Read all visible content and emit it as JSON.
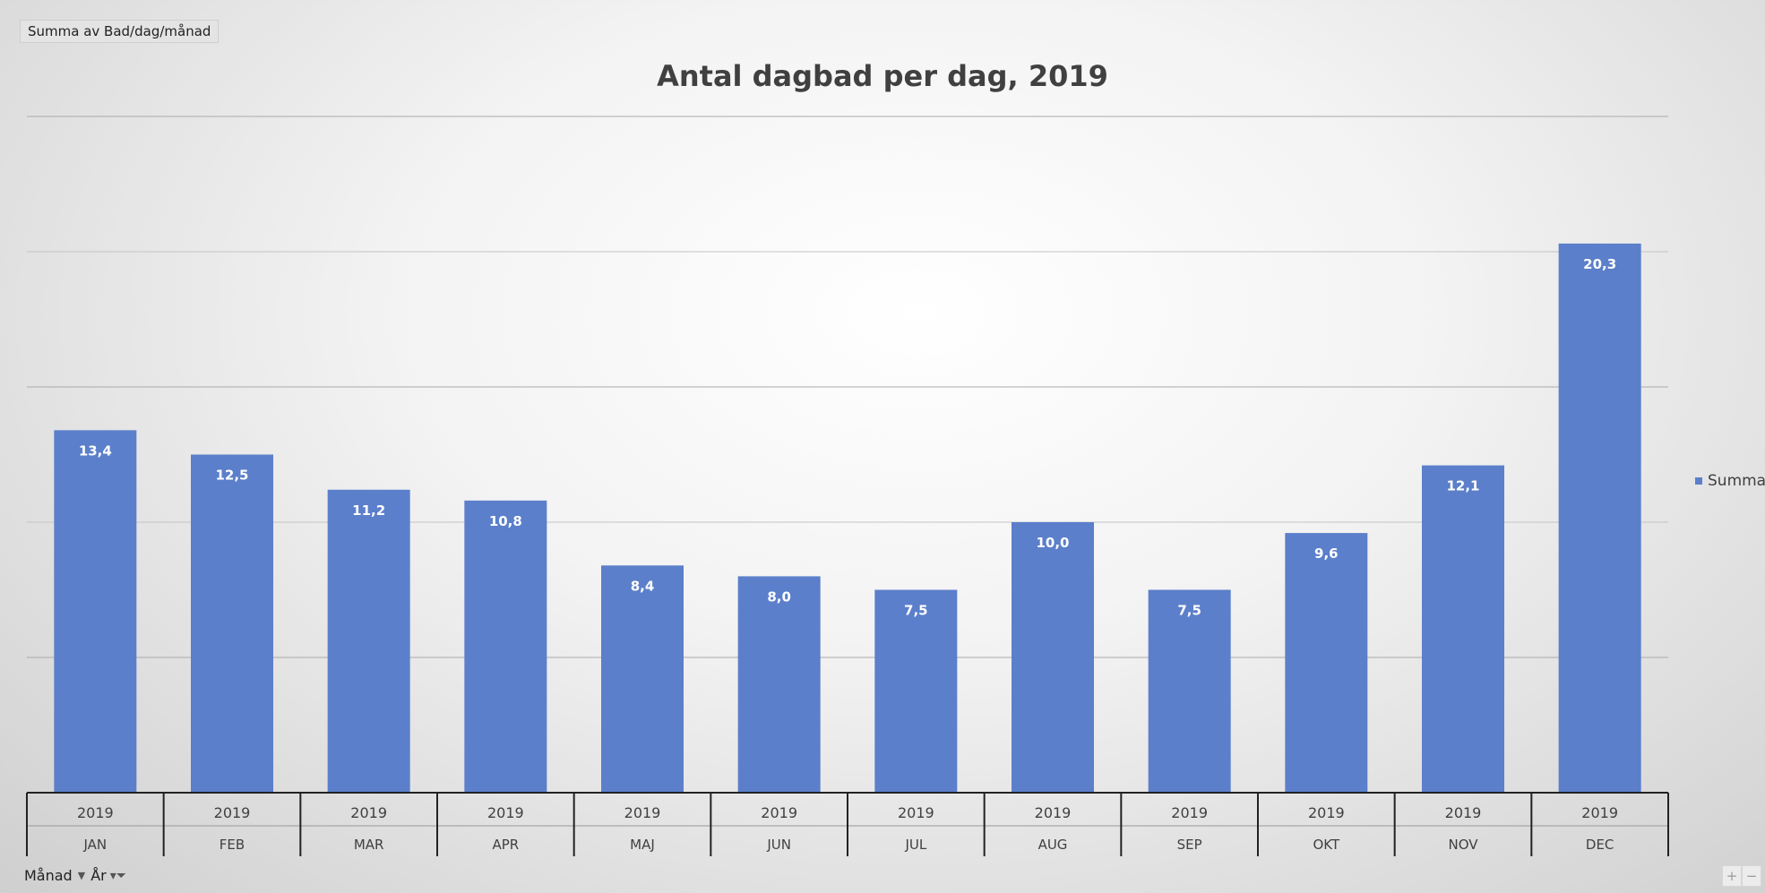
{
  "field_button": "Summa  av Bad/dag/månad",
  "chart_data": {
    "type": "bar",
    "title": "Antal dagbad per dag, 2019",
    "categories": [
      {
        "year": "2019",
        "month": "JAN"
      },
      {
        "year": "2019",
        "month": "FEB"
      },
      {
        "year": "2019",
        "month": "MAR"
      },
      {
        "year": "2019",
        "month": "APR"
      },
      {
        "year": "2019",
        "month": "MAJ"
      },
      {
        "year": "2019",
        "month": "JUN"
      },
      {
        "year": "2019",
        "month": "JUL"
      },
      {
        "year": "2019",
        "month": "AUG"
      },
      {
        "year": "2019",
        "month": "SEP"
      },
      {
        "year": "2019",
        "month": "OKT"
      },
      {
        "year": "2019",
        "month": "NOV"
      },
      {
        "year": "2019",
        "month": "DEC"
      }
    ],
    "series": [
      {
        "name": "Summa",
        "values": [
          13.4,
          12.5,
          11.2,
          10.8,
          8.4,
          8.0,
          7.5,
          10.0,
          7.5,
          9.6,
          12.1,
          20.3
        ],
        "labels": [
          "13,4",
          "12,5",
          "11,2",
          "10,8",
          "8,4",
          "8,0",
          "7,5",
          "10,0",
          "7,5",
          "9,6",
          "12,1",
          "20,3"
        ],
        "color": "#5b7fca"
      }
    ],
    "ylim": [
      0,
      25
    ],
    "gridlines": [
      5,
      10,
      15,
      20,
      25
    ],
    "y_tick_labels_shown": false,
    "legend_position": "right"
  },
  "filters": [
    {
      "label": "Månad",
      "icon": "dropdown-arrow-icon"
    },
    {
      "label": "År",
      "icon": "filter-funnel-icon"
    }
  ],
  "zoom": {
    "plus": "+",
    "minus": "−"
  }
}
